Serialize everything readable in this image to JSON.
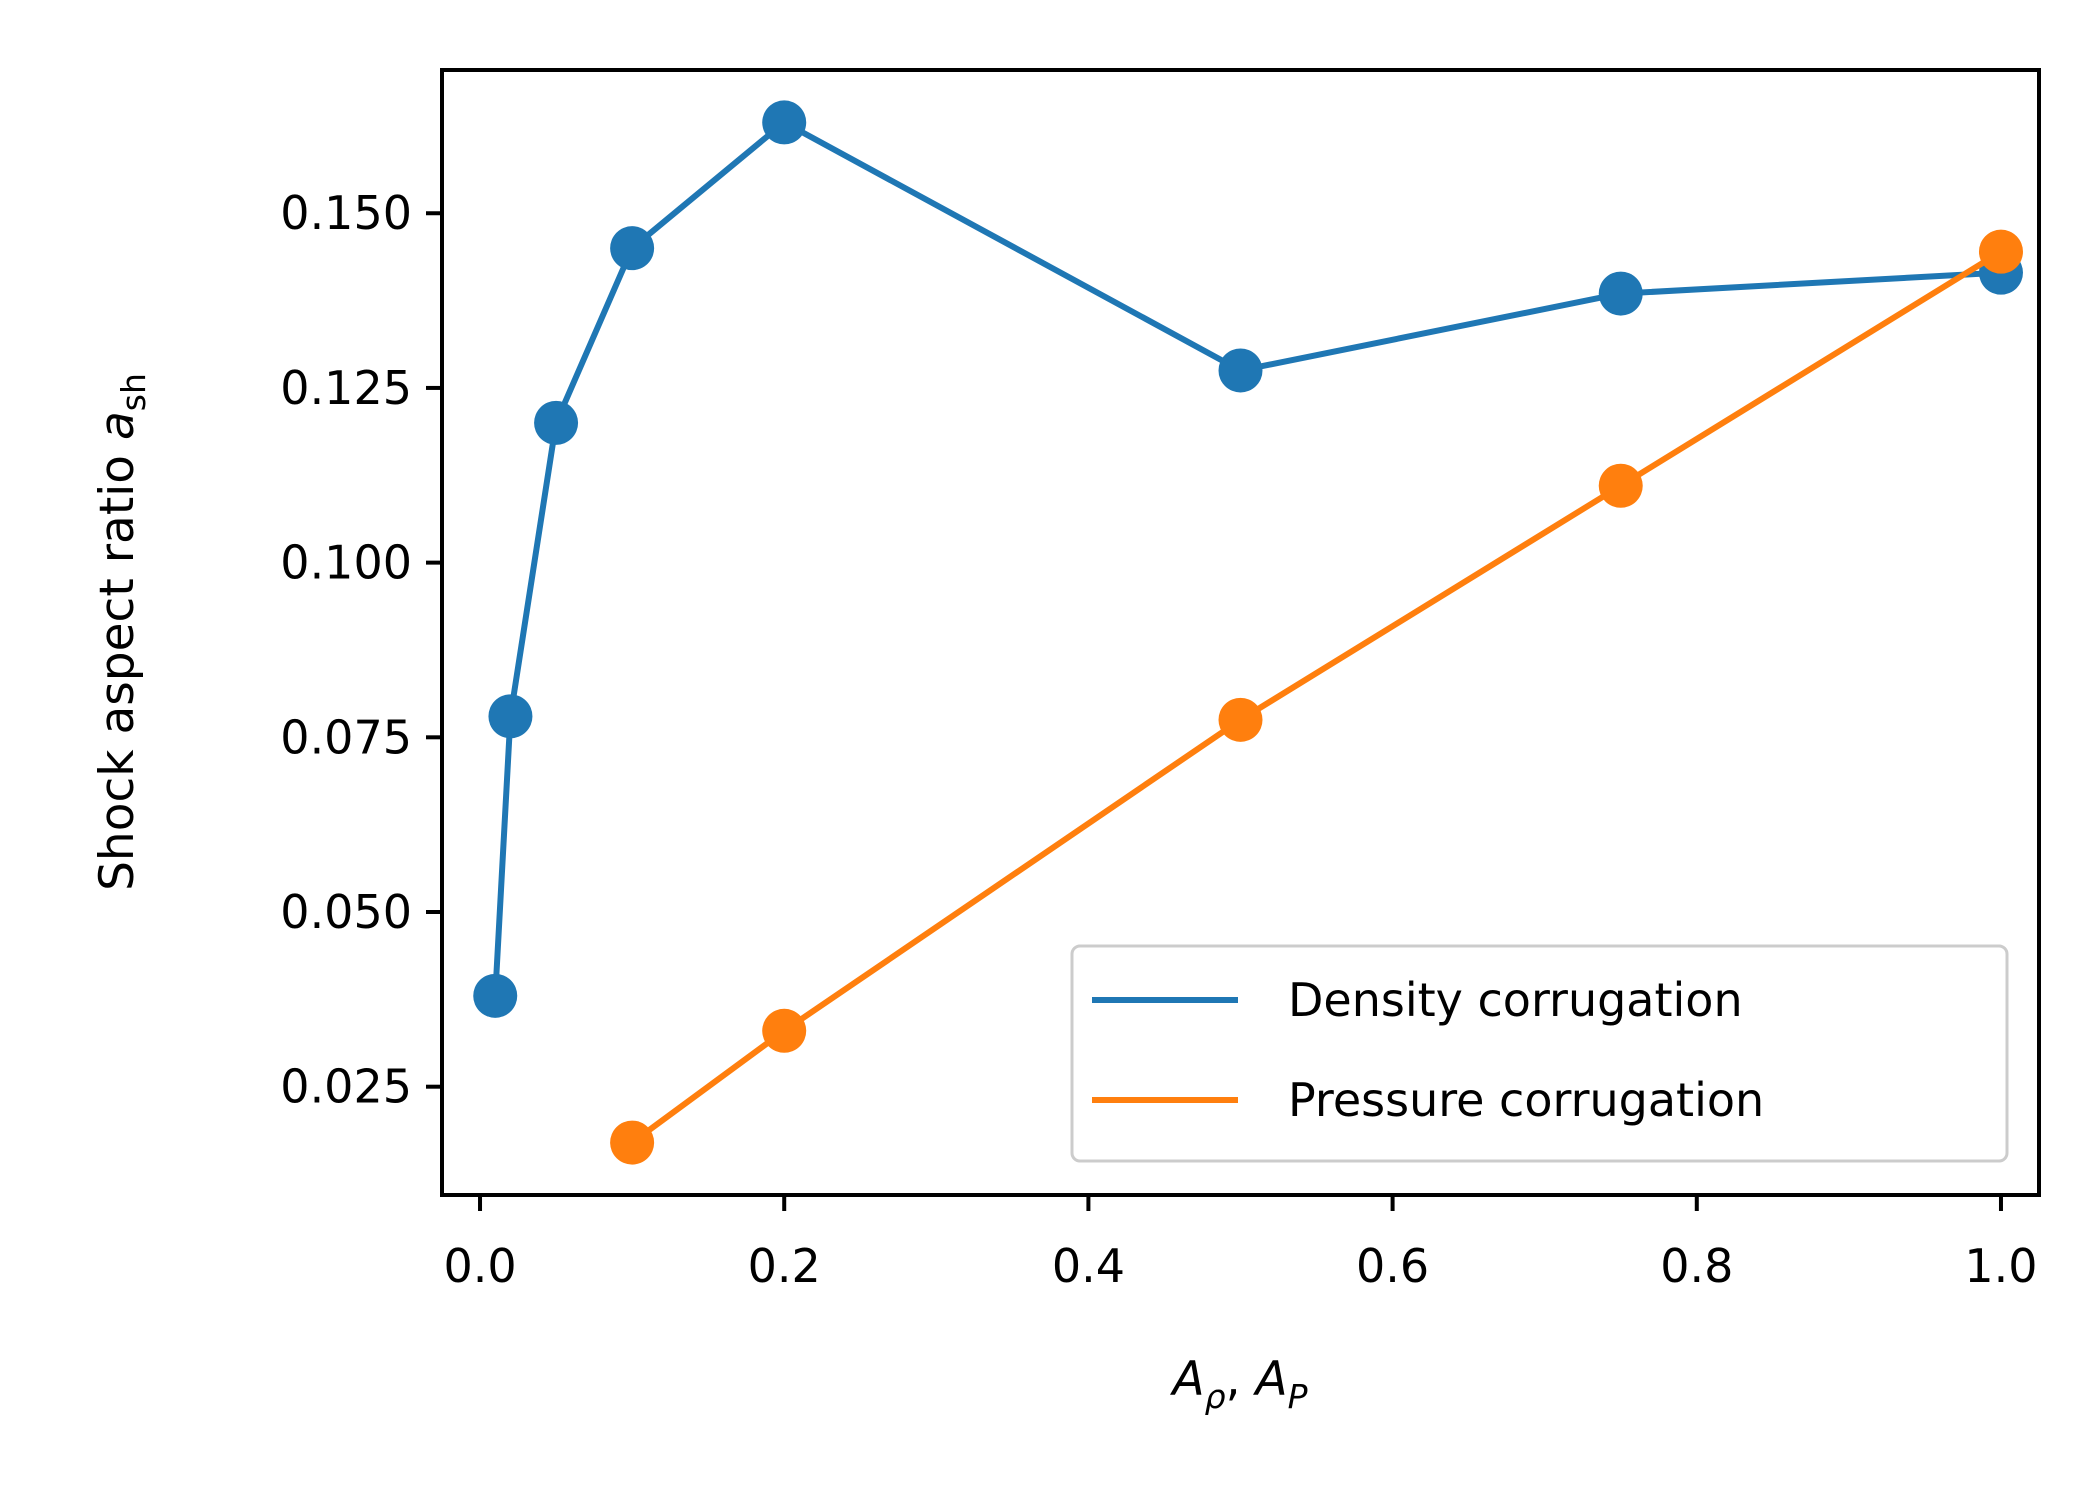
{
  "chart_data": {
    "type": "line",
    "title": "",
    "xlabel": {
      "base1": "A",
      "sub1": "ρ",
      "sep": ", ",
      "base2": "A",
      "sub2": "P"
    },
    "ylabel": {
      "text": "Shock aspect ratio ",
      "var": "a",
      "sub": "sh"
    },
    "xlim": [
      -0.025,
      1.025
    ],
    "ylim": [
      0.0095,
      0.1705
    ],
    "xticks": [
      0.0,
      0.2,
      0.4,
      0.6,
      0.8,
      1.0
    ],
    "xtick_labels": [
      "0.0",
      "0.2",
      "0.4",
      "0.6",
      "0.8",
      "1.0"
    ],
    "yticks": [
      0.025,
      0.05,
      0.075,
      0.1,
      0.125,
      0.15
    ],
    "ytick_labels": [
      "0.025",
      "0.050",
      "0.075",
      "0.100",
      "0.125",
      "0.150"
    ],
    "grid": false,
    "legend_position": "lower-right",
    "series": [
      {
        "name": "Density corrugation",
        "color": "#1f77b4",
        "x": [
          0.01,
          0.02,
          0.05,
          0.1,
          0.2,
          0.5,
          0.75,
          1.0
        ],
        "y": [
          0.038,
          0.078,
          0.12,
          0.145,
          0.163,
          0.1275,
          0.1385,
          0.1415
        ]
      },
      {
        "name": "Pressure corrugation",
        "color": "#ff7f0e",
        "x": [
          0.1,
          0.2,
          0.5,
          0.75,
          1.0
        ],
        "y": [
          0.017,
          0.033,
          0.0775,
          0.111,
          0.1445
        ]
      }
    ]
  }
}
